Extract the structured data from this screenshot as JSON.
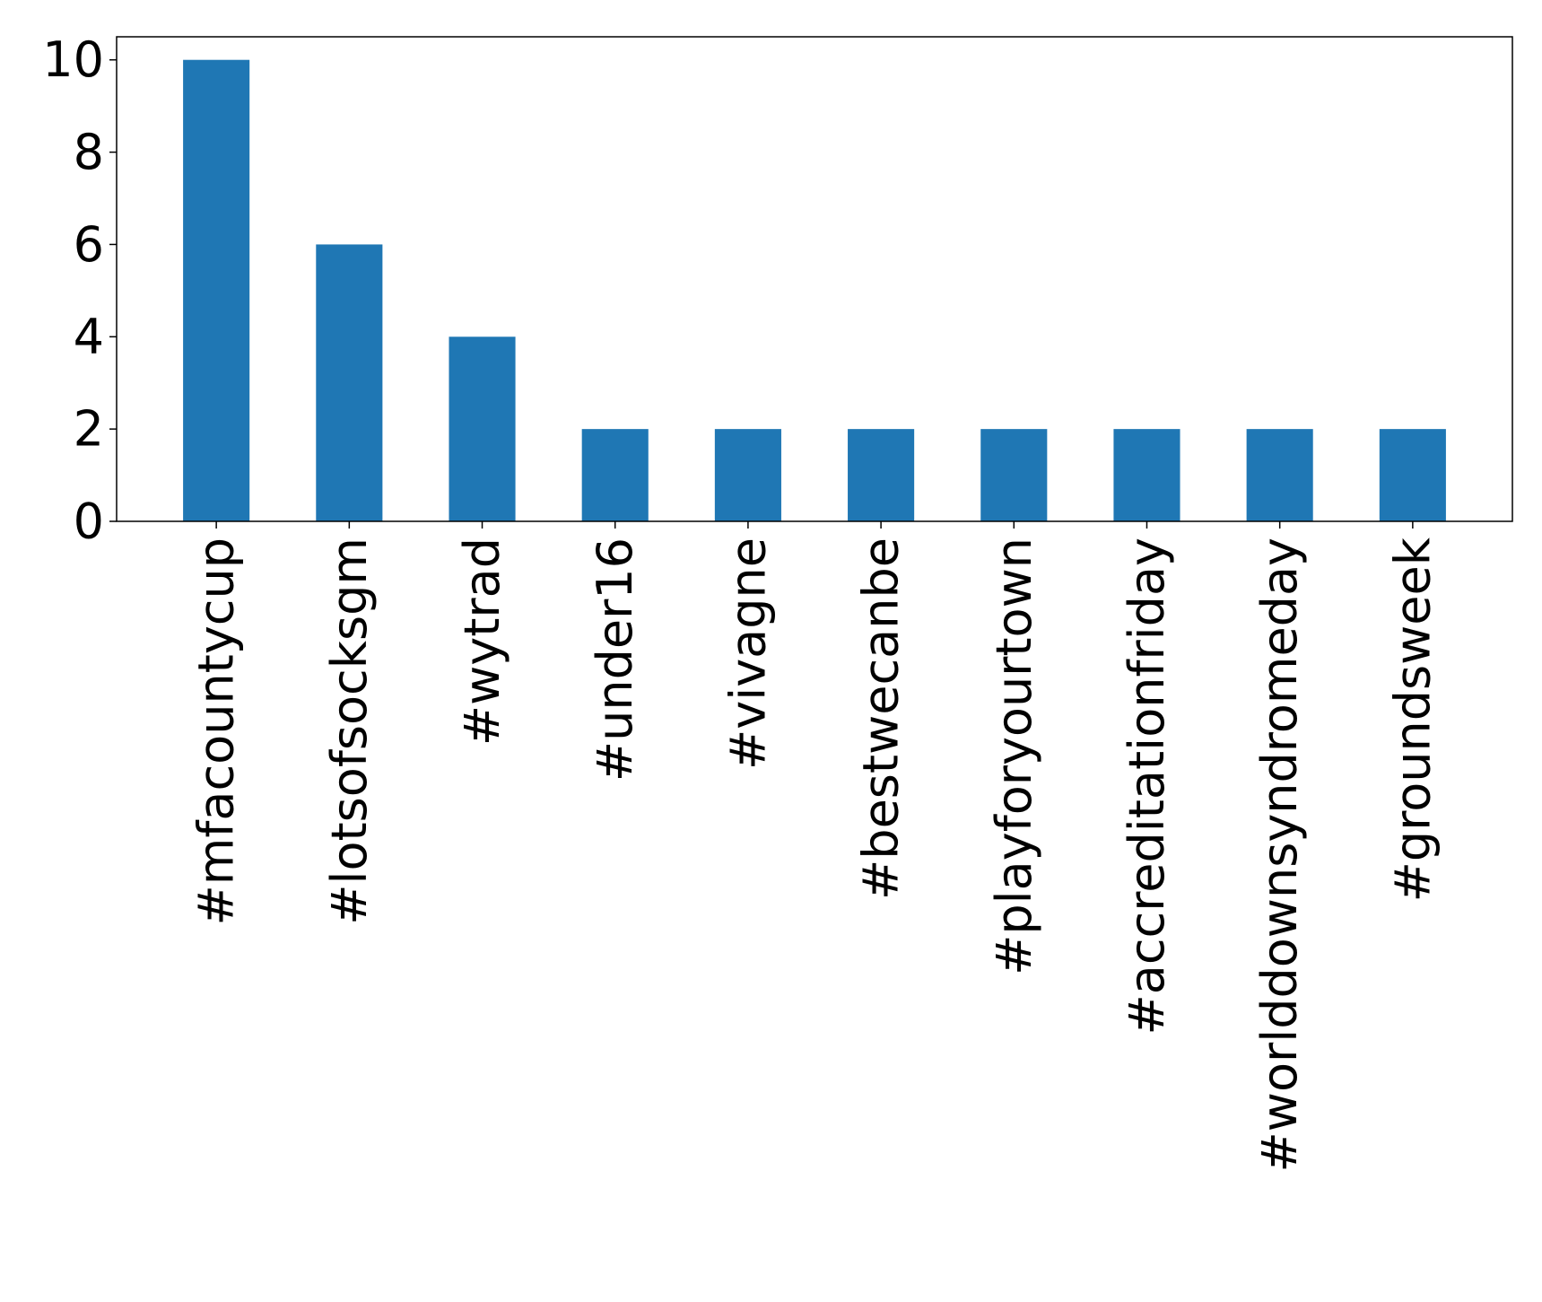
{
  "chart_data": {
    "type": "bar",
    "categories": [
      "#mfacountycup",
      "#lotsofsocksgm",
      "#wytrad",
      "#under16",
      "#vivagne",
      "#bestwecanbe",
      "#playforyourtown",
      "#accreditationfriday",
      "#worlddownsyndromeday",
      "#groundsweek"
    ],
    "values": [
      10,
      6,
      4,
      2,
      2,
      2,
      2,
      2,
      2,
      2
    ],
    "yticks": [
      "0",
      "2",
      "4",
      "6",
      "8",
      "10"
    ],
    "ylim": [
      0,
      10.5
    ],
    "bar_color": "#1f77b4",
    "grid": false,
    "legend": "none"
  }
}
